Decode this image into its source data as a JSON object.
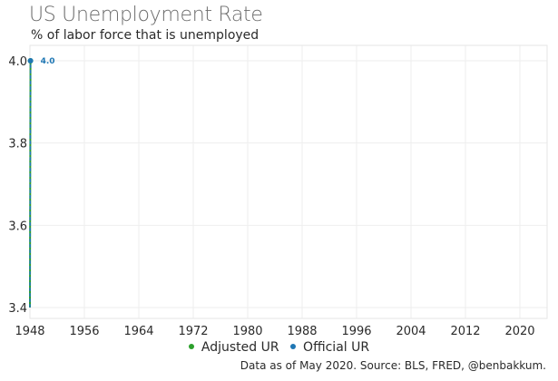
{
  "chart_data": {
    "type": "line",
    "title": "US Unemployment Rate",
    "subtitle": "% of labor force that is unemployed",
    "source": "Data as of May 2020. Source: BLS, FRED, @benbakkum.",
    "xlim": [
      1948,
      2024
    ],
    "ylim": [
      3.4,
      4.0
    ],
    "x_ticks": [
      1948,
      1956,
      1964,
      1972,
      1980,
      1988,
      1996,
      2004,
      2012,
      2020
    ],
    "y_ticks": [
      3.4,
      3.6,
      3.8,
      4.0
    ],
    "grid": true,
    "legend_position": "bottom",
    "series": [
      {
        "name": "Adjusted UR",
        "color": "#2ca02c",
        "x": [
          1948.0,
          1948.08
        ],
        "y": [
          3.4,
          4.0
        ]
      },
      {
        "name": "Official UR",
        "color": "#1f77b4",
        "x": [
          1948.0,
          1948.08
        ],
        "y": [
          3.4,
          4.0
        ],
        "end_label": "4.0"
      }
    ]
  }
}
